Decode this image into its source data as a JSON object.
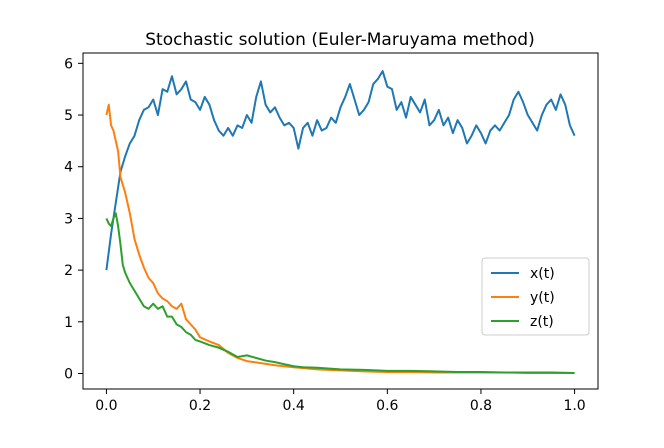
{
  "chart_data": {
    "type": "line",
    "title": "Stochastic solution (Euler-Maruyama method)",
    "xlabel": "",
    "ylabel": "",
    "xlim": [
      -0.05,
      1.05
    ],
    "ylim": [
      -0.3,
      6.2
    ],
    "xticks": [
      {
        "value": 0.0,
        "label": "0.0"
      },
      {
        "value": 0.2,
        "label": "0.2"
      },
      {
        "value": 0.4,
        "label": "0.4"
      },
      {
        "value": 0.6,
        "label": "0.6"
      },
      {
        "value": 0.8,
        "label": "0.8"
      },
      {
        "value": 1.0,
        "label": "1.0"
      }
    ],
    "yticks": [
      {
        "value": 0,
        "label": "0"
      },
      {
        "value": 1,
        "label": "1"
      },
      {
        "value": 2,
        "label": "2"
      },
      {
        "value": 3,
        "label": "3"
      },
      {
        "value": 4,
        "label": "4"
      },
      {
        "value": 5,
        "label": "5"
      },
      {
        "value": 6,
        "label": "6"
      }
    ],
    "grid": false,
    "legend_position": "center-right",
    "series": [
      {
        "name": "x(t)",
        "color": "#1f77b4",
        "x": [
          0.0,
          0.01,
          0.02,
          0.03,
          0.04,
          0.05,
          0.06,
          0.07,
          0.08,
          0.09,
          0.1,
          0.11,
          0.12,
          0.13,
          0.14,
          0.15,
          0.16,
          0.17,
          0.18,
          0.19,
          0.2,
          0.21,
          0.22,
          0.23,
          0.24,
          0.25,
          0.26,
          0.27,
          0.28,
          0.29,
          0.3,
          0.31,
          0.32,
          0.33,
          0.34,
          0.35,
          0.36,
          0.37,
          0.38,
          0.39,
          0.4,
          0.41,
          0.42,
          0.43,
          0.44,
          0.45,
          0.46,
          0.47,
          0.48,
          0.49,
          0.5,
          0.51,
          0.52,
          0.53,
          0.54,
          0.55,
          0.56,
          0.57,
          0.58,
          0.59,
          0.6,
          0.61,
          0.62,
          0.63,
          0.64,
          0.65,
          0.66,
          0.67,
          0.68,
          0.69,
          0.7,
          0.71,
          0.72,
          0.73,
          0.74,
          0.75,
          0.76,
          0.77,
          0.78,
          0.79,
          0.8,
          0.81,
          0.82,
          0.83,
          0.84,
          0.85,
          0.86,
          0.87,
          0.88,
          0.89,
          0.9,
          0.91,
          0.92,
          0.93,
          0.94,
          0.95,
          0.96,
          0.97,
          0.98,
          0.99,
          1.0
        ],
        "values": [
          2.0,
          2.7,
          3.3,
          3.9,
          4.2,
          4.45,
          4.6,
          4.9,
          5.1,
          5.15,
          5.3,
          5.0,
          5.5,
          5.45,
          5.75,
          5.4,
          5.5,
          5.65,
          5.3,
          5.25,
          5.1,
          5.35,
          5.2,
          4.9,
          4.7,
          4.6,
          4.75,
          4.6,
          4.8,
          4.75,
          5.0,
          4.85,
          5.35,
          5.65,
          5.2,
          5.05,
          5.15,
          4.95,
          4.8,
          4.85,
          4.75,
          4.35,
          4.75,
          4.85,
          4.6,
          4.9,
          4.7,
          4.75,
          4.95,
          4.85,
          5.15,
          5.35,
          5.6,
          5.3,
          5.0,
          5.1,
          5.25,
          5.6,
          5.7,
          5.85,
          5.55,
          5.5,
          5.1,
          5.25,
          4.95,
          5.35,
          5.2,
          5.05,
          5.3,
          4.8,
          4.9,
          5.1,
          4.8,
          4.95,
          4.65,
          4.9,
          4.75,
          4.45,
          4.6,
          4.8,
          4.65,
          4.45,
          4.7,
          4.8,
          4.7,
          4.85,
          5.0,
          5.3,
          5.45,
          5.25,
          5.0,
          4.85,
          4.7,
          5.0,
          5.2,
          5.3,
          5.1,
          5.4,
          5.2,
          4.8,
          4.6
        ]
      },
      {
        "name": "y(t)",
        "color": "#ff7f0e",
        "x": [
          0.0,
          0.005,
          0.01,
          0.015,
          0.02,
          0.025,
          0.03,
          0.04,
          0.05,
          0.06,
          0.07,
          0.08,
          0.09,
          0.1,
          0.11,
          0.12,
          0.13,
          0.14,
          0.15,
          0.16,
          0.17,
          0.18,
          0.19,
          0.2,
          0.22,
          0.24,
          0.26,
          0.28,
          0.3,
          0.33,
          0.36,
          0.4,
          0.45,
          0.5,
          0.55,
          0.6,
          0.65,
          0.7,
          0.75,
          0.8,
          0.85,
          0.9,
          0.95,
          1.0
        ],
        "values": [
          5.0,
          5.2,
          4.8,
          4.7,
          4.5,
          4.3,
          3.8,
          3.5,
          3.1,
          2.6,
          2.3,
          2.05,
          1.85,
          1.75,
          1.55,
          1.45,
          1.4,
          1.3,
          1.25,
          1.35,
          1.05,
          0.95,
          0.85,
          0.7,
          0.62,
          0.55,
          0.4,
          0.3,
          0.24,
          0.2,
          0.16,
          0.12,
          0.08,
          0.06,
          0.04,
          0.03,
          0.03,
          0.02,
          0.02,
          0.02,
          0.02,
          0.01,
          0.01,
          0.01
        ]
      },
      {
        "name": "z(t)",
        "color": "#2ca02c",
        "x": [
          0.0,
          0.005,
          0.01,
          0.015,
          0.02,
          0.025,
          0.03,
          0.035,
          0.04,
          0.05,
          0.06,
          0.07,
          0.08,
          0.09,
          0.1,
          0.11,
          0.12,
          0.13,
          0.14,
          0.15,
          0.16,
          0.17,
          0.18,
          0.19,
          0.2,
          0.22,
          0.24,
          0.26,
          0.28,
          0.3,
          0.32,
          0.34,
          0.36,
          0.38,
          0.4,
          0.42,
          0.45,
          0.5,
          0.55,
          0.6,
          0.65,
          0.7,
          0.75,
          0.8,
          0.85,
          0.9,
          0.95,
          1.0
        ],
        "values": [
          3.0,
          2.9,
          2.85,
          3.0,
          3.1,
          2.85,
          2.5,
          2.1,
          1.95,
          1.75,
          1.6,
          1.45,
          1.3,
          1.25,
          1.35,
          1.25,
          1.3,
          1.1,
          1.1,
          0.95,
          0.9,
          0.8,
          0.75,
          0.65,
          0.62,
          0.55,
          0.5,
          0.42,
          0.32,
          0.35,
          0.3,
          0.25,
          0.22,
          0.18,
          0.14,
          0.12,
          0.11,
          0.08,
          0.07,
          0.05,
          0.05,
          0.04,
          0.03,
          0.03,
          0.02,
          0.02,
          0.02,
          0.01
        ]
      }
    ]
  }
}
